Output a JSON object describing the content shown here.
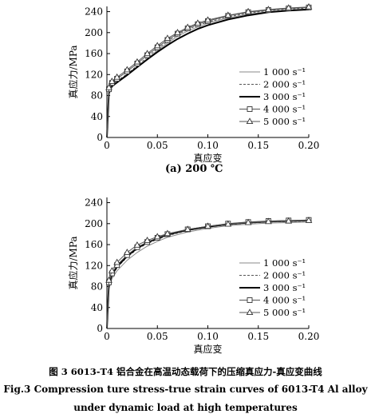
{
  "figure": {
    "caption_cn": "图 3   6013-T4 铝合金在高温动态载荷下的压缩真应力-真应变曲线",
    "caption_en_1": "Fig.3   Compression ture stress-true strain curves of 6013-T4 Al alloy",
    "caption_en_2": "under dynamic load at high temperatures"
  },
  "chart_data": [
    {
      "type": "line",
      "panel_label": "(a) 200 ℃",
      "xlabel": "真应变",
      "ylabel": "真应力/MPa",
      "xlim": [
        0,
        0.2
      ],
      "ylim": [
        0,
        250
      ],
      "xticks": [
        "0",
        "0.05",
        "0.10",
        "0.15",
        "0.20"
      ],
      "yticks": [
        "0",
        "40",
        "80",
        "120",
        "160",
        "200",
        "240"
      ],
      "legend_position": "bottom-right",
      "series": [
        {
          "name": "1 000 s⁻¹",
          "style": "thin-solid",
          "points": [
            [
              0,
              0
            ],
            [
              0.002,
              82
            ],
            [
              0.005,
              96
            ],
            [
              0.01,
              104
            ],
            [
              0.02,
              118
            ],
            [
              0.03,
              134
            ],
            [
              0.04,
              150
            ],
            [
              0.05,
              166
            ],
            [
              0.06,
              180
            ],
            [
              0.07,
              193
            ],
            [
              0.08,
              203
            ],
            [
              0.09,
              211
            ],
            [
              0.1,
              218
            ],
            [
              0.12,
              228
            ],
            [
              0.14,
              235
            ],
            [
              0.16,
              240
            ],
            [
              0.18,
              243
            ],
            [
              0.2,
              245
            ]
          ]
        },
        {
          "name": "2 000 s⁻¹",
          "style": "dashed",
          "points": [
            [
              0,
              0
            ],
            [
              0.002,
              88
            ],
            [
              0.005,
              101
            ],
            [
              0.01,
              108
            ],
            [
              0.02,
              121
            ],
            [
              0.03,
              137
            ],
            [
              0.04,
              153
            ],
            [
              0.05,
              169
            ],
            [
              0.06,
              183
            ],
            [
              0.07,
              196
            ],
            [
              0.08,
              206
            ],
            [
              0.09,
              214
            ],
            [
              0.1,
              220
            ],
            [
              0.12,
              230
            ],
            [
              0.14,
              237
            ],
            [
              0.16,
              242
            ],
            [
              0.18,
              245
            ],
            [
              0.2,
              247
            ]
          ]
        },
        {
          "name": "3 000 s⁻¹",
          "style": "thick-solid",
          "points": [
            [
              0,
              0
            ],
            [
              0.002,
              85
            ],
            [
              0.005,
              98
            ],
            [
              0.01,
              105
            ],
            [
              0.02,
              119
            ],
            [
              0.03,
              134
            ],
            [
              0.04,
              149
            ],
            [
              0.05,
              163
            ],
            [
              0.06,
              176
            ],
            [
              0.07,
              188
            ],
            [
              0.08,
              198
            ],
            [
              0.09,
              207
            ],
            [
              0.1,
              214
            ],
            [
              0.12,
              225
            ],
            [
              0.14,
              233
            ],
            [
              0.16,
              239
            ],
            [
              0.18,
              242
            ],
            [
              0.2,
              244
            ]
          ]
        },
        {
          "name": "4 000 s⁻¹",
          "style": "square-marker",
          "points": [
            [
              0,
              0
            ],
            [
              0.002,
              92
            ],
            [
              0.005,
              104
            ],
            [
              0.01,
              112
            ],
            [
              0.02,
              126
            ],
            [
              0.03,
              141
            ],
            [
              0.04,
              157
            ],
            [
              0.05,
              172
            ],
            [
              0.06,
              186
            ],
            [
              0.07,
              198
            ],
            [
              0.08,
              208
            ],
            [
              0.09,
              216
            ],
            [
              0.1,
              222
            ],
            [
              0.12,
              232
            ],
            [
              0.14,
              239
            ],
            [
              0.16,
              243
            ],
            [
              0.18,
              246
            ],
            [
              0.2,
              248
            ]
          ]
        },
        {
          "name": "5 000 s⁻¹",
          "style": "triangle-marker",
          "points": [
            [
              0,
              0
            ],
            [
              0.002,
              95
            ],
            [
              0.005,
              107
            ],
            [
              0.01,
              115
            ],
            [
              0.02,
              129
            ],
            [
              0.03,
              144
            ],
            [
              0.04,
              160
            ],
            [
              0.05,
              175
            ],
            [
              0.06,
              189
            ],
            [
              0.07,
              200
            ],
            [
              0.08,
              210
            ],
            [
              0.09,
              218
            ],
            [
              0.1,
              224
            ],
            [
              0.12,
              233
            ],
            [
              0.14,
              240
            ],
            [
              0.16,
              244
            ],
            [
              0.18,
              247
            ],
            [
              0.2,
              249
            ]
          ]
        }
      ]
    },
    {
      "type": "line",
      "panel_label": "",
      "xlabel": "真应变",
      "ylabel": "真应力/MPa",
      "xlim": [
        0,
        0.2
      ],
      "ylim": [
        0,
        250
      ],
      "xticks": [
        "0",
        "0.05",
        "0.10",
        "0.15",
        "0.20"
      ],
      "yticks": [
        "0",
        "40",
        "80",
        "120",
        "160",
        "200",
        "240"
      ],
      "legend_position": "bottom-right",
      "series": [
        {
          "name": "1 000 s⁻¹",
          "style": "thin-solid",
          "points": [
            [
              0,
              0
            ],
            [
              0.002,
              75
            ],
            [
              0.005,
              95
            ],
            [
              0.01,
              110
            ],
            [
              0.02,
              130
            ],
            [
              0.03,
              145
            ],
            [
              0.04,
              157
            ],
            [
              0.05,
              166
            ],
            [
              0.06,
              174
            ],
            [
              0.08,
              184
            ],
            [
              0.1,
              191
            ],
            [
              0.12,
              196
            ],
            [
              0.14,
              199
            ],
            [
              0.16,
              201
            ],
            [
              0.18,
              202
            ],
            [
              0.2,
              203
            ]
          ]
        },
        {
          "name": "2 000 s⁻¹",
          "style": "dashed",
          "points": [
            [
              0,
              0
            ],
            [
              0.002,
              82
            ],
            [
              0.005,
              100
            ],
            [
              0.01,
              116
            ],
            [
              0.02,
              136
            ],
            [
              0.03,
              151
            ],
            [
              0.04,
              162
            ],
            [
              0.05,
              170
            ],
            [
              0.06,
              177
            ],
            [
              0.08,
              187
            ],
            [
              0.1,
              193
            ],
            [
              0.12,
              198
            ],
            [
              0.14,
              201
            ],
            [
              0.16,
              203
            ],
            [
              0.18,
              204
            ],
            [
              0.2,
              205
            ]
          ]
        },
        {
          "name": "3 000 s⁻¹",
          "style": "thick-solid",
          "points": [
            [
              0,
              0
            ],
            [
              0.002,
              85
            ],
            [
              0.005,
              102
            ],
            [
              0.01,
              118
            ],
            [
              0.02,
              138
            ],
            [
              0.03,
              153
            ],
            [
              0.04,
              164
            ],
            [
              0.05,
              172
            ],
            [
              0.06,
              179
            ],
            [
              0.08,
              188
            ],
            [
              0.1,
              194
            ],
            [
              0.12,
              199
            ],
            [
              0.14,
              202
            ],
            [
              0.16,
              204
            ],
            [
              0.18,
              205
            ],
            [
              0.2,
              206
            ]
          ]
        },
        {
          "name": "4 000 s⁻¹",
          "style": "square-marker",
          "points": [
            [
              0,
              0
            ],
            [
              0.002,
              88
            ],
            [
              0.005,
              105
            ],
            [
              0.01,
              121
            ],
            [
              0.02,
              140
            ],
            [
              0.03,
              155
            ],
            [
              0.04,
              165
            ],
            [
              0.05,
              173
            ],
            [
              0.06,
              180
            ],
            [
              0.08,
              189
            ],
            [
              0.1,
              195
            ],
            [
              0.12,
              200
            ],
            [
              0.14,
              203
            ],
            [
              0.16,
              205
            ],
            [
              0.18,
              206
            ],
            [
              0.2,
              207
            ]
          ]
        },
        {
          "name": "5 000 s⁻¹",
          "style": "triangle-marker",
          "points": [
            [
              0,
              0
            ],
            [
              0.002,
              92
            ],
            [
              0.005,
              110
            ],
            [
              0.01,
              126
            ],
            [
              0.02,
              145
            ],
            [
              0.03,
              159
            ],
            [
              0.04,
              168
            ],
            [
              0.05,
              175
            ],
            [
              0.06,
              181
            ],
            [
              0.08,
              189
            ],
            [
              0.1,
              195
            ],
            [
              0.12,
              199
            ],
            [
              0.14,
              202
            ],
            [
              0.16,
              204
            ],
            [
              0.18,
              205
            ],
            [
              0.2,
              206
            ]
          ]
        }
      ]
    }
  ]
}
